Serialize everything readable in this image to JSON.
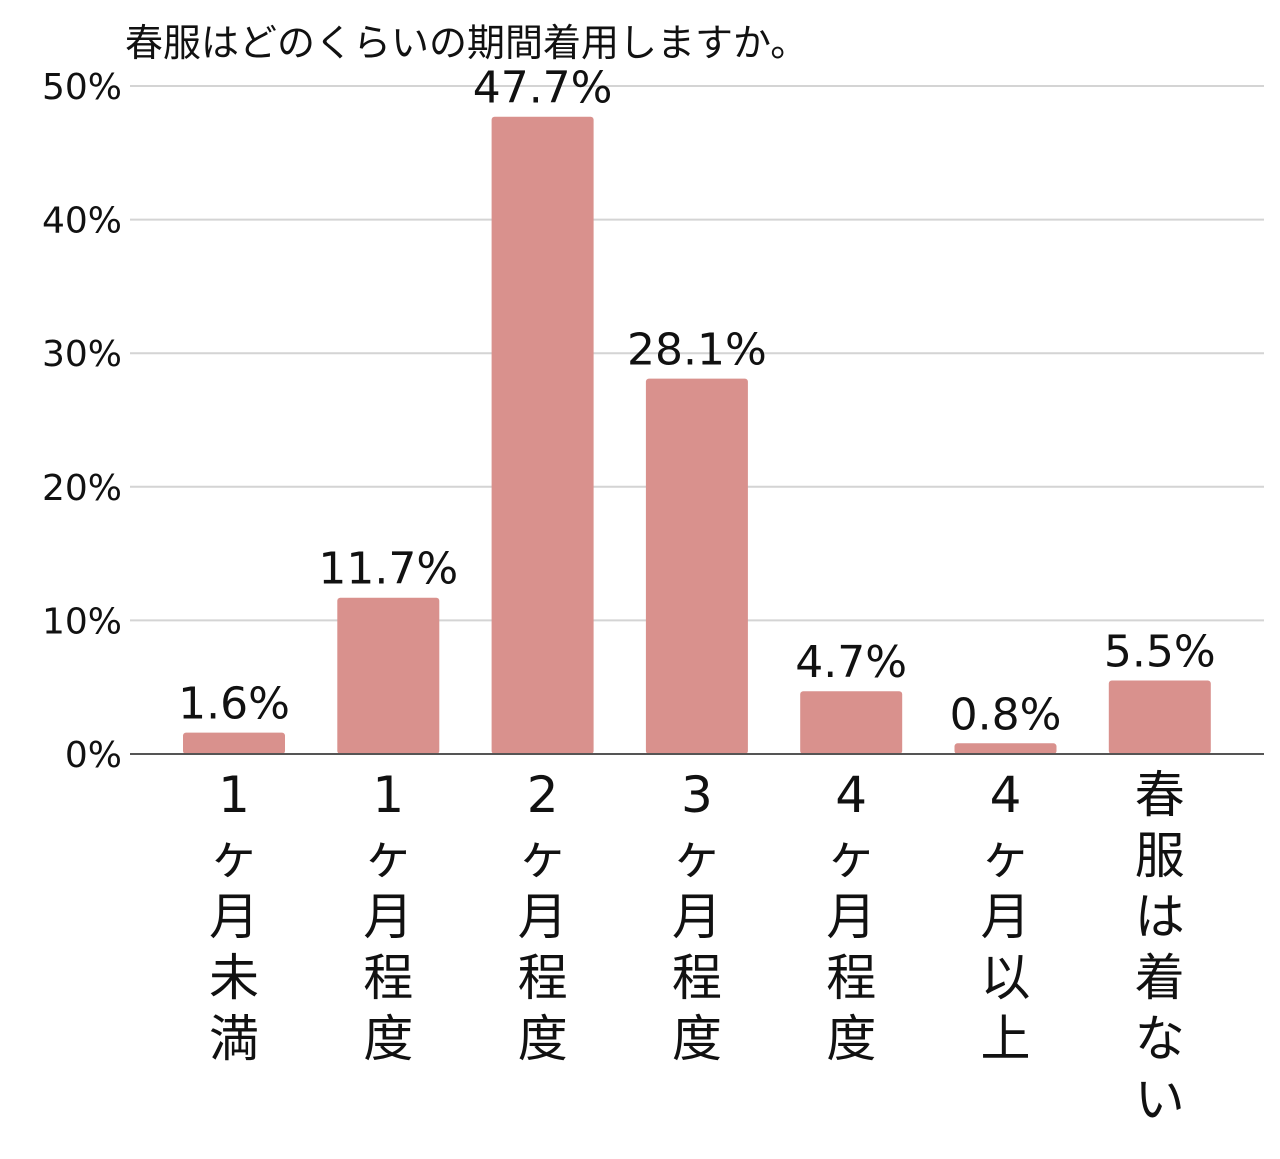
{
  "chart_data": {
    "type": "bar",
    "title": "春服はどのくらいの期間着用しますか。",
    "categories": [
      "1ヶ月未満",
      "1ヶ月程度",
      "2ヶ月程度",
      "3ヶ月程度",
      "4ヶ月程度",
      "4ヶ月以上",
      "春服は着ない"
    ],
    "values": [
      1.6,
      11.7,
      47.7,
      28.1,
      4.7,
      0.8,
      5.5
    ],
    "data_labels": [
      "1.6%",
      "11.7%",
      "47.7%",
      "28.1%",
      "4.7%",
      "0.8%",
      "5.5%"
    ],
    "ylim": [
      0,
      50
    ],
    "yticks": [
      0,
      10,
      20,
      30,
      40,
      50
    ],
    "ytick_labels": [
      "0%",
      "10%",
      "20%",
      "30%",
      "40%",
      "50%"
    ],
    "xlabel": "",
    "ylabel": "",
    "bar_color": "#d9918d",
    "grid": true,
    "legend": "none"
  }
}
